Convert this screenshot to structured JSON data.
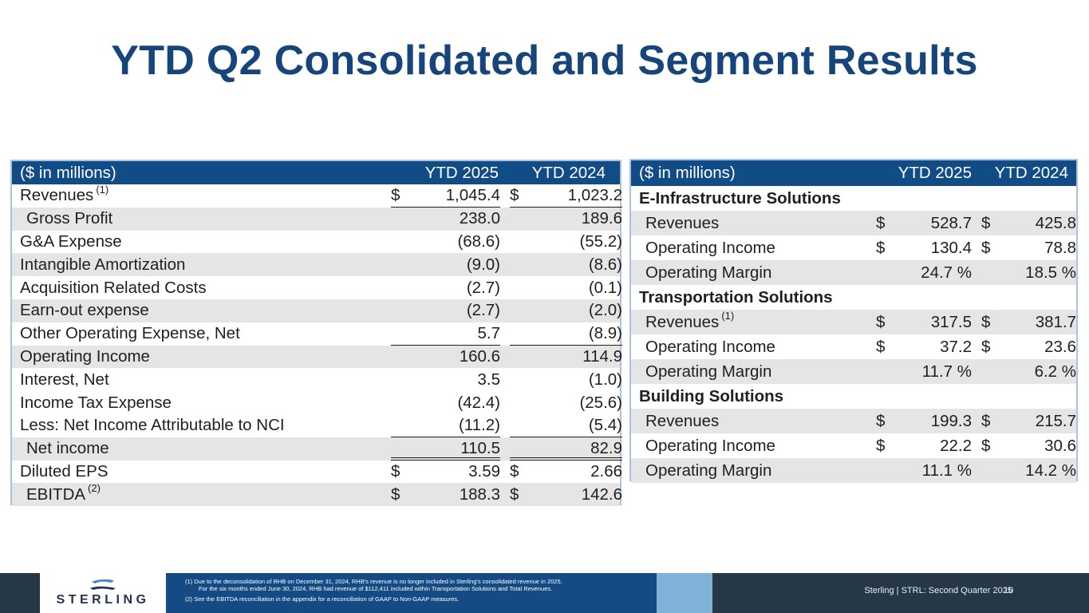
{
  "title": "YTD Q2 Consolidated and Segment Results",
  "left_table": {
    "header": {
      "label": "($ in millions)",
      "col1": "YTD 2025",
      "col2": "YTD 2024"
    },
    "rows": [
      {
        "label": "Revenues",
        "sup": "(1)",
        "c1": "$",
        "v1": "1,045.4",
        "c2": "$",
        "v2": "1,023.2"
      },
      {
        "label": "Gross Profit",
        "sup": "",
        "c1": "",
        "v1": "238.0",
        "c2": "",
        "v2": "189.6"
      },
      {
        "label": "G&A Expense",
        "sup": "",
        "c1": "",
        "v1": "(68.6)",
        "c2": "",
        "v2": "(55.2)"
      },
      {
        "label": "Intangible Amortization",
        "sup": "",
        "c1": "",
        "v1": "(9.0)",
        "c2": "",
        "v2": "(8.6)"
      },
      {
        "label": "Acquisition Related Costs",
        "sup": "",
        "c1": "",
        "v1": "(2.7)",
        "c2": "",
        "v2": "(0.1)"
      },
      {
        "label": "Earn-out expense",
        "sup": "",
        "c1": "",
        "v1": "(2.7)",
        "c2": "",
        "v2": "(2.0)"
      },
      {
        "label": "Other Operating Expense, Net",
        "sup": "",
        "c1": "",
        "v1": "5.7",
        "c2": "",
        "v2": "(8.9)"
      },
      {
        "label": "Operating Income",
        "sup": "",
        "c1": "",
        "v1": "160.6",
        "c2": "",
        "v2": "114.9"
      },
      {
        "label": "Interest, Net",
        "sup": "",
        "c1": "",
        "v1": "3.5",
        "c2": "",
        "v2": "(1.0)"
      },
      {
        "label": "Income Tax Expense",
        "sup": "",
        "c1": "",
        "v1": "(42.4)",
        "c2": "",
        "v2": "(25.6)"
      },
      {
        "label": "Less: Net Income Attributable to NCI",
        "sup": "",
        "c1": "",
        "v1": "(11.2)",
        "c2": "",
        "v2": "(5.4)"
      },
      {
        "label": "Net income",
        "sup": "",
        "c1": "",
        "v1": "110.5",
        "c2": "",
        "v2": "82.9"
      },
      {
        "label": "Diluted EPS",
        "sup": "",
        "c1": "$",
        "v1": "3.59",
        "c2": "$",
        "v2": "2.66"
      },
      {
        "label": "EBITDA",
        "sup": "(2)",
        "c1": "$",
        "v1": "188.3",
        "c2": "$",
        "v2": "142.6"
      }
    ]
  },
  "right_table": {
    "header": {
      "label": "($ in millions)",
      "col1": "YTD 2025",
      "col2": "YTD 2024"
    },
    "rows": [
      {
        "label": "E-Infrastructure Solutions",
        "sup": "",
        "c1": "",
        "v1": "",
        "c2": "",
        "v2": ""
      },
      {
        "label": "Revenues",
        "sup": "",
        "c1": "$",
        "v1": "528.7",
        "c2": "$",
        "v2": "425.8"
      },
      {
        "label": "Operating Income",
        "sup": "",
        "c1": "$",
        "v1": "130.4",
        "c2": "$",
        "v2": "78.8"
      },
      {
        "label": "Operating Margin",
        "sup": "",
        "c1": "",
        "v1": "24.7 %",
        "c2": "",
        "v2": "18.5 %"
      },
      {
        "label": "Transportation Solutions",
        "sup": "",
        "c1": "",
        "v1": "",
        "c2": "",
        "v2": ""
      },
      {
        "label": "Revenues",
        "sup": "(1)",
        "c1": "$",
        "v1": "317.5",
        "c2": "$",
        "v2": "381.7"
      },
      {
        "label": "Operating Income",
        "sup": "",
        "c1": "$",
        "v1": "37.2",
        "c2": "$",
        "v2": "23.6"
      },
      {
        "label": "Operating Margin",
        "sup": "",
        "c1": "",
        "v1": "11.7 %",
        "c2": "",
        "v2": "6.2 %"
      },
      {
        "label": "Building Solutions",
        "sup": "",
        "c1": "",
        "v1": "",
        "c2": "",
        "v2": ""
      },
      {
        "label": "Revenues",
        "sup": "",
        "c1": "$",
        "v1": "199.3",
        "c2": "$",
        "v2": "215.7"
      },
      {
        "label": "Operating Income",
        "sup": "",
        "c1": "$",
        "v1": "22.2",
        "c2": "$",
        "v2": "30.6"
      },
      {
        "label": "Operating Margin",
        "sup": "",
        "c1": "",
        "v1": "11.1 %",
        "c2": "",
        "v2": "14.2 %"
      }
    ]
  },
  "footer": {
    "logo_text": "STERLING",
    "footnote1_line1": "(1)  Due to the deconsolidation of RHB on December 31, 2024, RHB's revenue is no longer included in Sterling's consolidated revenue in 2025.",
    "footnote1_line2": "For the six months ended June 30, 2024, RHB had revenue of $112,411 included within Transportation Solutions and Total Revenues.",
    "footnote2": "(2)  See the EBITDA reconciliation in the appendix for a reconciliation of GAAP to Non-GAAP measures.",
    "meta": "Sterling | STRL:  Second Quarter  2025",
    "page_number": "10"
  }
}
